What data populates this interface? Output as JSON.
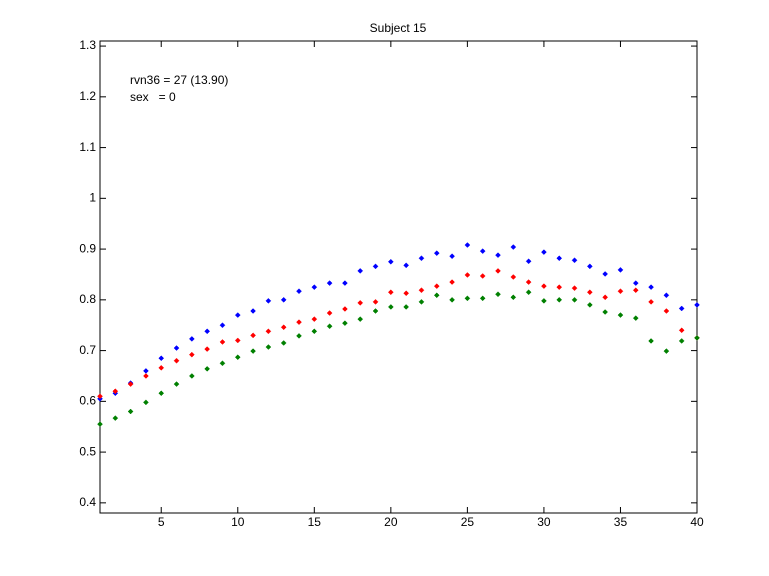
{
  "chart_data": {
    "type": "scatter",
    "title": "Subject 15",
    "annotations": [
      "rvn36 = 27 (13.90)",
      "sex   = 0"
    ],
    "x": [
      1,
      2,
      3,
      4,
      5,
      6,
      7,
      8,
      9,
      10,
      11,
      12,
      13,
      14,
      15,
      16,
      17,
      18,
      19,
      20,
      21,
      22,
      23,
      24,
      25,
      26,
      27,
      28,
      29,
      30,
      31,
      32,
      33,
      34,
      35,
      36,
      37,
      38,
      39,
      40
    ],
    "series": [
      {
        "color": "#0000ff",
        "values": [
          0.605,
          0.616,
          0.636,
          0.66,
          0.685,
          0.705,
          0.723,
          0.738,
          0.75,
          0.77,
          0.778,
          0.798,
          0.8,
          0.817,
          0.825,
          0.833,
          0.833,
          0.857,
          0.866,
          0.875,
          0.868,
          0.882,
          0.892,
          0.886,
          0.908,
          0.896,
          0.888,
          0.904,
          0.876,
          0.894,
          0.882,
          0.878,
          0.866,
          0.851,
          0.859,
          0.833,
          0.825,
          0.809,
          0.783,
          0.79
        ]
      },
      {
        "color": "#ff0000",
        "values": [
          0.61,
          0.62,
          0.634,
          0.65,
          0.666,
          0.68,
          0.692,
          0.703,
          0.717,
          0.72,
          0.73,
          0.738,
          0.746,
          0.756,
          0.762,
          0.774,
          0.782,
          0.794,
          0.796,
          0.815,
          0.813,
          0.819,
          0.827,
          0.835,
          0.849,
          0.847,
          0.857,
          0.845,
          0.835,
          0.827,
          0.825,
          0.823,
          0.815,
          0.805,
          0.817,
          0.819,
          0.796,
          0.778,
          0.74,
          0.725
        ]
      },
      {
        "color": "#008000",
        "values": [
          0.555,
          0.567,
          0.58,
          0.598,
          0.616,
          0.634,
          0.65,
          0.664,
          0.675,
          0.687,
          0.699,
          0.707,
          0.715,
          0.729,
          0.738,
          0.748,
          0.754,
          0.762,
          0.778,
          0.786,
          0.786,
          0.796,
          0.809,
          0.8,
          0.803,
          0.803,
          0.811,
          0.805,
          0.815,
          0.798,
          0.8,
          0.8,
          0.79,
          0.776,
          0.77,
          0.764,
          0.719,
          0.699,
          0.719,
          0.725
        ]
      }
    ],
    "xlim": [
      1,
      40
    ],
    "xticks": [
      5,
      10,
      15,
      20,
      25,
      30,
      35,
      40
    ],
    "ylim": [
      0.38,
      1.31
    ],
    "yticks": [
      0.4,
      0.5,
      0.6,
      0.7,
      0.8,
      0.9,
      1,
      1.1,
      1.2,
      1.3
    ],
    "grid": false
  }
}
